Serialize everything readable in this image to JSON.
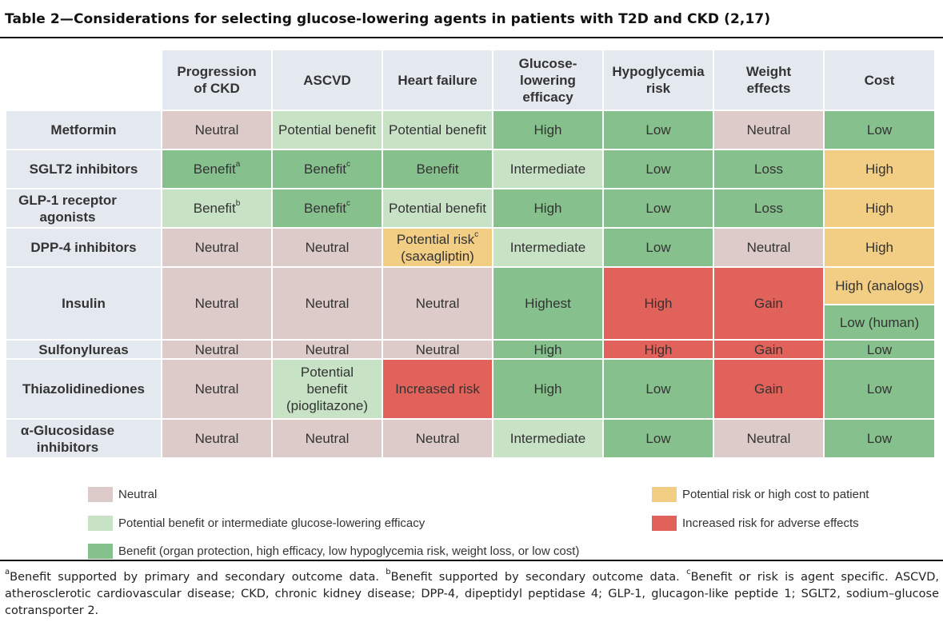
{
  "title": "Table 2—Considerations for selecting glucose-lowering agents in patients with T2D and CKD (2,17)",
  "colors": {
    "neutral": "#dccbc9",
    "potential": "#c8e2c6",
    "benefit": "#86c08c",
    "cost": "#f2cd84",
    "risk": "#e1625a",
    "header": "#e4e8ef"
  },
  "columns": [
    "Progression of CKD",
    "ASCVD",
    "Heart failure",
    "Glucose-lowering efficacy",
    "Hypoglycemia risk",
    "Weight effects",
    "Cost"
  ],
  "rows": [
    {
      "label": "Metformin",
      "cells": [
        {
          "text": "Neutral",
          "sup": "",
          "cls": "neutral"
        },
        {
          "text": "Potential benefit",
          "sup": "",
          "cls": "potential"
        },
        {
          "text": "Potential benefit",
          "sup": "",
          "cls": "potential"
        },
        {
          "text": "High",
          "sup": "",
          "cls": "benefit"
        },
        {
          "text": "Low",
          "sup": "",
          "cls": "benefit"
        },
        {
          "text": "Neutral",
          "sup": "",
          "cls": "neutral"
        },
        {
          "text": "Low",
          "sup": "",
          "cls": "benefit"
        }
      ]
    },
    {
      "label": "SGLT2 inhibitors",
      "cells": [
        {
          "text": "Benefit",
          "sup": "a",
          "cls": "benefit"
        },
        {
          "text": "Benefit",
          "sup": "c",
          "cls": "benefit"
        },
        {
          "text": "Benefit",
          "sup": "",
          "cls": "benefit"
        },
        {
          "text": "Intermediate",
          "sup": "",
          "cls": "potential"
        },
        {
          "text": "Low",
          "sup": "",
          "cls": "benefit"
        },
        {
          "text": "Loss",
          "sup": "",
          "cls": "benefit"
        },
        {
          "text": "High",
          "sup": "",
          "cls": "cost"
        }
      ]
    },
    {
      "label": "GLP-1 receptor agonists",
      "cells": [
        {
          "text": "Benefit",
          "sup": "b",
          "cls": "potential"
        },
        {
          "text": "Benefit",
          "sup": "c",
          "cls": "benefit"
        },
        {
          "text": "Potential benefit",
          "sup": "",
          "cls": "potential"
        },
        {
          "text": "High",
          "sup": "",
          "cls": "benefit"
        },
        {
          "text": "Low",
          "sup": "",
          "cls": "benefit"
        },
        {
          "text": "Loss",
          "sup": "",
          "cls": "benefit"
        },
        {
          "text": "High",
          "sup": "",
          "cls": "cost"
        }
      ]
    },
    {
      "label": "DPP-4 inhibitors",
      "cells": [
        {
          "text": "Neutral",
          "sup": "",
          "cls": "neutral"
        },
        {
          "text": "Neutral",
          "sup": "",
          "cls": "neutral"
        },
        {
          "text": "Potential risk",
          "sup": "c",
          "text2": "(saxagliptin)",
          "cls": "cost"
        },
        {
          "text": "Intermediate",
          "sup": "",
          "cls": "potential"
        },
        {
          "text": "Low",
          "sup": "",
          "cls": "benefit"
        },
        {
          "text": "Neutral",
          "sup": "",
          "cls": "neutral"
        },
        {
          "text": "High",
          "sup": "",
          "cls": "cost"
        }
      ]
    },
    {
      "label": "Insulin",
      "cells": [
        {
          "text": "Neutral",
          "sup": "",
          "cls": "neutral"
        },
        {
          "text": "Neutral",
          "sup": "",
          "cls": "neutral"
        },
        {
          "text": "Neutral",
          "sup": "",
          "cls": "neutral"
        },
        {
          "text": "Highest",
          "sup": "",
          "cls": "benefit"
        },
        {
          "text": "High",
          "sup": "",
          "cls": "risk"
        },
        {
          "text": "Gain",
          "sup": "",
          "cls": "risk"
        }
      ],
      "cost_split": [
        {
          "text": "High (analogs)",
          "cls": "cost"
        },
        {
          "text": "Low (human)",
          "cls": "benefit"
        }
      ]
    },
    {
      "label": "Sulfonylureas",
      "cells": [
        {
          "text": "Neutral",
          "sup": "",
          "cls": "neutral"
        },
        {
          "text": "Neutral",
          "sup": "",
          "cls": "neutral"
        },
        {
          "text": "Neutral",
          "sup": "",
          "cls": "neutral"
        },
        {
          "text": "High",
          "sup": "",
          "cls": "benefit"
        },
        {
          "text": "High",
          "sup": "",
          "cls": "risk"
        },
        {
          "text": "Gain",
          "sup": "",
          "cls": "risk"
        },
        {
          "text": "Low",
          "sup": "",
          "cls": "benefit"
        }
      ]
    },
    {
      "label": "Thiazolidinediones",
      "cells": [
        {
          "text": "Neutral",
          "sup": "",
          "cls": "neutral"
        },
        {
          "text": "Potential benefit (pioglitazone)",
          "sup": "",
          "cls": "potential"
        },
        {
          "text": "Increased risk",
          "sup": "",
          "cls": "risk"
        },
        {
          "text": "High",
          "sup": "",
          "cls": "benefit"
        },
        {
          "text": "Low",
          "sup": "",
          "cls": "benefit"
        },
        {
          "text": "Gain",
          "sup": "",
          "cls": "risk"
        },
        {
          "text": "Low",
          "sup": "",
          "cls": "benefit"
        }
      ]
    },
    {
      "label": "α-Glucosidase inhibitors",
      "cells": [
        {
          "text": "Neutral",
          "sup": "",
          "cls": "neutral"
        },
        {
          "text": "Neutral",
          "sup": "",
          "cls": "neutral"
        },
        {
          "text": "Neutral",
          "sup": "",
          "cls": "neutral"
        },
        {
          "text": "Intermediate",
          "sup": "",
          "cls": "potential"
        },
        {
          "text": "Low",
          "sup": "",
          "cls": "benefit"
        },
        {
          "text": "Neutral",
          "sup": "",
          "cls": "neutral"
        },
        {
          "text": "Low",
          "sup": "",
          "cls": "benefit"
        }
      ]
    }
  ],
  "legend": [
    {
      "label": "Neutral",
      "color": "#dccbc9"
    },
    {
      "label": "Potential benefit or intermediate glucose-lowering efficacy",
      "color": "#c8e2c6"
    },
    {
      "label": "Benefit (organ protection, high efficacy, low hypoglycemia risk, weight loss, or low cost)",
      "color": "#86c08c"
    },
    {
      "label": "Potential risk or high cost to patient",
      "color": "#f2cd84"
    },
    {
      "label": "Increased risk for adverse effects",
      "color": "#e1625a"
    }
  ],
  "footnote": {
    "a_mark": "a",
    "a_text": "Benefit supported by primary and secondary outcome data. ",
    "b_mark": "b",
    "b_text": "Benefit supported by secondary outcome data. ",
    "c_mark": "c",
    "c_text": "Benefit or risk is agent specific. ASCVD, atherosclerotic cardiovascular disease; CKD, chronic kidney disease; DPP-4, dipeptidyl peptidase 4; GLP-1, glucagon-like peptide 1; SGLT2, sodium–glucose cotransporter 2."
  }
}
